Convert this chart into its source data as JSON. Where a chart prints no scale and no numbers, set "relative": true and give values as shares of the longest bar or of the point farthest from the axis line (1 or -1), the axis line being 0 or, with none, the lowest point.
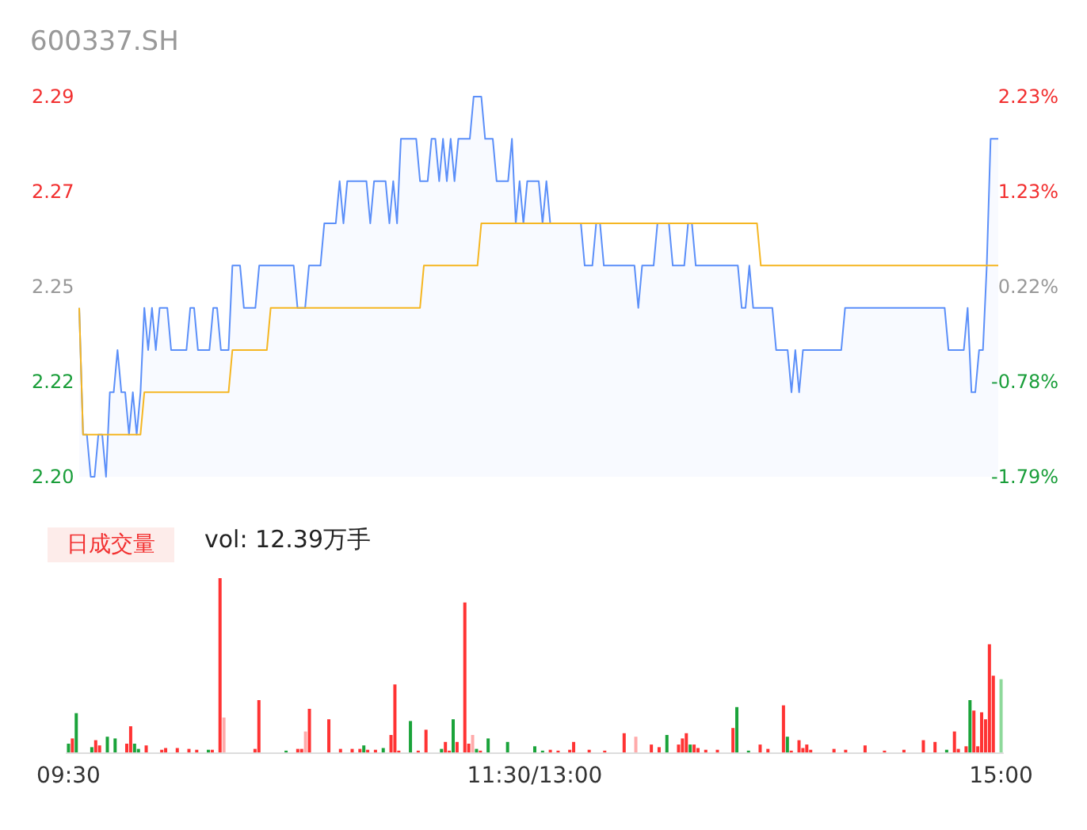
{
  "chart_data": [
    {
      "type": "line",
      "title": "600337.SH",
      "tick_labels": "y",
      "categories": [
        null,
        null,
        null,
        null,
        null,
        null,
        null,
        null,
        null,
        null,
        null,
        null,
        null,
        null,
        null,
        null,
        null,
        null,
        null,
        null,
        null,
        null,
        null,
        null,
        null,
        null,
        null,
        null,
        null,
        null,
        null,
        null,
        null,
        null,
        null,
        null,
        null,
        null,
        null,
        null,
        null,
        null,
        null,
        null,
        null,
        null,
        null,
        null,
        null,
        null,
        null,
        null,
        null,
        null,
        null,
        null,
        null,
        null,
        null,
        null,
        null,
        null,
        null,
        null,
        null,
        null,
        null,
        null,
        null,
        null,
        null,
        null,
        null,
        null,
        null,
        null,
        null,
        null,
        null,
        null,
        null,
        null,
        null,
        null,
        null,
        null,
        null,
        null,
        null,
        null,
        null,
        null,
        null,
        null,
        null,
        null,
        null,
        null,
        null,
        null,
        null,
        null,
        null,
        null,
        null,
        null,
        null,
        null,
        null,
        null,
        null,
        null,
        null,
        null,
        null,
        null,
        null,
        null,
        null,
        null,
        null,
        null,
        null,
        null,
        null,
        null,
        null,
        null,
        null,
        null,
        null,
        null,
        null,
        null,
        null,
        null,
        null,
        null,
        null,
        null,
        null,
        null,
        null,
        null,
        null,
        null,
        null,
        null,
        null,
        null,
        null,
        null,
        null,
        null,
        null,
        null,
        null,
        null,
        null,
        null,
        null,
        null,
        null,
        null,
        null,
        null,
        null,
        null,
        null,
        null,
        null,
        null,
        null,
        null,
        null,
        null,
        null,
        null,
        null,
        null,
        null,
        null,
        null,
        null,
        null,
        null,
        null,
        null,
        null,
        null,
        null,
        null,
        null,
        null,
        null,
        null,
        null,
        null,
        null,
        null,
        null,
        null,
        null,
        null,
        null,
        null,
        null,
        null,
        null,
        null,
        null,
        null,
        null,
        null,
        null,
        null,
        null,
        null,
        null,
        null,
        null,
        null,
        null,
        null,
        null,
        null,
        null,
        null,
        null,
        null,
        null,
        null,
        null,
        null,
        null,
        null,
        null,
        null,
        null,
        null,
        null
      ],
      "ylim": [
        2.2,
        2.29
      ],
      "yticks": [
        {
          "value": 2.2,
          "label": "2.20"
        },
        {
          "value": 2.2225,
          "label": "2.22"
        },
        {
          "value": 2.245,
          "label": "2.25"
        },
        {
          "value": 2.2675,
          "label": "2.27"
        },
        {
          "value": 2.29,
          "label": "2.29"
        }
      ],
      "y2lim": [
        -1.79,
        2.23
      ],
      "y2ticks": [
        {
          "value": -1.79,
          "label": "-1.79%"
        },
        {
          "value": -0.785,
          "label": "-0.78%"
        },
        {
          "value": 0.22,
          "label": "0.22%"
        },
        {
          "value": 1.225,
          "label": "1.23%"
        },
        {
          "value": 2.23,
          "label": "2.23%"
        }
      ],
      "series": [
        {
          "type": "area",
          "color": "#5b8ff9",
          "values": [
            2.24,
            2.21,
            2.21,
            2.2,
            2.2,
            2.21,
            2.21,
            2.2,
            2.22,
            2.22,
            2.23,
            2.22,
            2.22,
            2.21,
            2.22,
            2.21,
            2.22,
            2.24,
            2.23,
            2.24,
            2.23,
            2.24,
            2.24,
            2.24,
            2.23,
            2.23,
            2.23,
            2.23,
            2.23,
            2.24,
            2.24,
            2.23,
            2.23,
            2.23,
            2.23,
            2.24,
            2.24,
            2.23,
            2.23,
            2.23,
            2.25,
            2.25,
            2.25,
            2.24,
            2.24,
            2.24,
            2.24,
            2.25,
            2.25,
            2.25,
            2.25,
            2.25,
            2.25,
            2.25,
            2.25,
            2.25,
            2.25,
            2.24,
            2.24,
            2.24,
            2.25,
            2.25,
            2.25,
            2.25,
            2.26,
            2.26,
            2.26,
            2.26,
            2.27,
            2.26,
            2.27,
            2.27,
            2.27,
            2.27,
            2.27,
            2.27,
            2.26,
            2.27,
            2.27,
            2.27,
            2.27,
            2.26,
            2.27,
            2.26,
            2.28,
            2.28,
            2.28,
            2.28,
            2.28,
            2.27,
            2.27,
            2.27,
            2.28,
            2.28,
            2.27,
            2.28,
            2.27,
            2.28,
            2.27,
            2.28,
            2.28,
            2.28,
            2.28,
            2.29,
            2.29,
            2.29,
            2.28,
            2.28,
            2.28,
            2.27,
            2.27,
            2.27,
            2.27,
            2.28,
            2.26,
            2.27,
            2.26,
            2.27,
            2.27,
            2.27,
            2.27,
            2.26,
            2.27,
            2.26,
            2.26,
            2.26,
            2.26,
            2.26,
            2.26,
            2.26,
            2.26,
            2.26,
            2.25,
            2.25,
            2.25,
            2.26,
            2.26,
            2.25,
            2.25,
            2.25,
            2.25,
            2.25,
            2.25,
            2.25,
            2.25,
            2.25,
            2.24,
            2.25,
            2.25,
            2.25,
            2.25,
            2.26,
            2.26,
            2.26,
            2.26,
            2.25,
            2.25,
            2.25,
            2.25,
            2.26,
            2.26,
            2.25,
            2.25,
            2.25,
            2.25,
            2.25,
            2.25,
            2.25,
            2.25,
            2.25,
            2.25,
            2.25,
            2.25,
            2.24,
            2.24,
            2.25,
            2.24,
            2.24,
            2.24,
            2.24,
            2.24,
            2.24,
            2.23,
            2.23,
            2.23,
            2.23,
            2.22,
            2.23,
            2.22,
            2.23,
            2.23,
            2.23,
            2.23,
            2.23,
            2.23,
            2.23,
            2.23,
            2.23,
            2.23,
            2.23,
            2.24,
            2.24,
            2.24,
            2.24,
            2.24,
            2.24,
            2.24,
            2.24,
            2.24,
            2.24,
            2.24,
            2.24,
            2.24,
            2.24,
            2.24,
            2.24,
            2.24,
            2.24,
            2.24,
            2.24,
            2.24,
            2.24,
            2.24,
            2.24,
            2.24,
            2.24,
            2.24,
            2.23,
            2.23,
            2.23,
            2.23,
            2.23,
            2.24,
            2.22,
            2.22,
            2.23,
            2.23,
            2.25,
            2.28,
            2.28,
            2.28
          ]
        },
        {
          "type": "line",
          "color": "#f5b622",
          "values": [
            2.24,
            2.21,
            2.21,
            2.21,
            2.21,
            2.21,
            2.21,
            2.21,
            2.21,
            2.21,
            2.21,
            2.21,
            2.21,
            2.21,
            2.21,
            2.21,
            2.21,
            2.22,
            2.22,
            2.22,
            2.22,
            2.22,
            2.22,
            2.22,
            2.22,
            2.22,
            2.22,
            2.22,
            2.22,
            2.22,
            2.22,
            2.22,
            2.22,
            2.22,
            2.22,
            2.22,
            2.22,
            2.22,
            2.22,
            2.22,
            2.23,
            2.23,
            2.23,
            2.23,
            2.23,
            2.23,
            2.23,
            2.23,
            2.23,
            2.23,
            2.24,
            2.24,
            2.24,
            2.24,
            2.24,
            2.24,
            2.24,
            2.24,
            2.24,
            2.24,
            2.24,
            2.24,
            2.24,
            2.24,
            2.24,
            2.24,
            2.24,
            2.24,
            2.24,
            2.24,
            2.24,
            2.24,
            2.24,
            2.24,
            2.24,
            2.24,
            2.24,
            2.24,
            2.24,
            2.24,
            2.24,
            2.24,
            2.24,
            2.24,
            2.24,
            2.24,
            2.24,
            2.24,
            2.24,
            2.24,
            2.25,
            2.25,
            2.25,
            2.25,
            2.25,
            2.25,
            2.25,
            2.25,
            2.25,
            2.25,
            2.25,
            2.25,
            2.25,
            2.25,
            2.25,
            2.26,
            2.26,
            2.26,
            2.26,
            2.26,
            2.26,
            2.26,
            2.26,
            2.26,
            2.26,
            2.26,
            2.26,
            2.26,
            2.26,
            2.26,
            2.26,
            2.26,
            2.26,
            2.26,
            2.26,
            2.26,
            2.26,
            2.26,
            2.26,
            2.26,
            2.26,
            2.26,
            2.26,
            2.26,
            2.26,
            2.26,
            2.26,
            2.26,
            2.26,
            2.26,
            2.26,
            2.26,
            2.26,
            2.26,
            2.26,
            2.26,
            2.26,
            2.26,
            2.26,
            2.26,
            2.26,
            2.26,
            2.26,
            2.26,
            2.26,
            2.26,
            2.26,
            2.26,
            2.26,
            2.26,
            2.26,
            2.26,
            2.26,
            2.26,
            2.26,
            2.26,
            2.26,
            2.26,
            2.26,
            2.26,
            2.26,
            2.26,
            2.26,
            2.26,
            2.26,
            2.26,
            2.26,
            2.26,
            2.25,
            2.25,
            2.25,
            2.25,
            2.25,
            2.25,
            2.25,
            2.25,
            2.25,
            2.25,
            2.25,
            2.25,
            2.25,
            2.25,
            2.25,
            2.25,
            2.25,
            2.25,
            2.25,
            2.25,
            2.25,
            2.25,
            2.25,
            2.25,
            2.25,
            2.25,
            2.25,
            2.25,
            2.25,
            2.25,
            2.25,
            2.25,
            2.25,
            2.25,
            2.25,
            2.25,
            2.25,
            2.25,
            2.25,
            2.25,
            2.25,
            2.25,
            2.25,
            2.25,
            2.25,
            2.25,
            2.25,
            2.25,
            2.25,
            2.25,
            2.25,
            2.25,
            2.25,
            2.25,
            2.25,
            2.25,
            2.25,
            2.25,
            2.25,
            2.25,
            2.25,
            2.25,
            2.25
          ]
        }
      ]
    },
    {
      "type": "bar",
      "relative": true,
      "tick_labels": "x",
      "categories": [
        "09:30",
        null,
        null,
        null,
        null,
        null,
        null,
        null,
        null,
        null,
        null,
        null,
        null,
        null,
        null,
        null,
        null,
        null,
        null,
        null,
        null,
        null,
        null,
        null,
        null,
        null,
        null,
        null,
        null,
        null,
        null,
        null,
        null,
        null,
        null,
        null,
        null,
        null,
        null,
        null,
        null,
        null,
        null,
        null,
        null,
        null,
        null,
        null,
        null,
        null,
        null,
        null,
        null,
        null,
        null,
        null,
        null,
        null,
        null,
        null,
        null,
        null,
        null,
        null,
        null,
        null,
        null,
        null,
        null,
        null,
        null,
        null,
        null,
        null,
        null,
        null,
        null,
        null,
        null,
        null,
        null,
        null,
        null,
        null,
        null,
        null,
        null,
        null,
        null,
        null,
        null,
        null,
        null,
        null,
        null,
        null,
        null,
        null,
        null,
        null,
        null,
        null,
        null,
        null,
        null,
        null,
        null,
        null,
        null,
        null,
        null,
        null,
        null,
        null,
        null,
        null,
        null,
        null,
        null,
        null,
        "11:30/13:00",
        null,
        null,
        null,
        null,
        null,
        null,
        null,
        null,
        null,
        null,
        null,
        null,
        null,
        null,
        null,
        null,
        null,
        null,
        null,
        null,
        null,
        null,
        null,
        null,
        null,
        null,
        null,
        null,
        null,
        null,
        null,
        null,
        null,
        null,
        null,
        null,
        null,
        null,
        null,
        null,
        null,
        null,
        null,
        null,
        null,
        null,
        null,
        null,
        null,
        null,
        null,
        null,
        null,
        null,
        null,
        null,
        null,
        null,
        null,
        null,
        null,
        null,
        null,
        null,
        null,
        null,
        null,
        null,
        null,
        null,
        null,
        null,
        null,
        null,
        null,
        null,
        null,
        null,
        null,
        null,
        null,
        null,
        null,
        null,
        null,
        null,
        null,
        null,
        null,
        null,
        null,
        null,
        null,
        null,
        null,
        null,
        null,
        null,
        null,
        null,
        null,
        null,
        null,
        null,
        null,
        null,
        null,
        null,
        null,
        null,
        null,
        null,
        null,
        null,
        null,
        null,
        null,
        null,
        null,
        "15:00"
      ],
      "annotations": [
        "日成交量",
        "vol: 12.39万手"
      ],
      "values": [
        0.05,
        0.08,
        0.225,
        null,
        null,
        null,
        0.03,
        0.07,
        0.04,
        null,
        0.09,
        null,
        0.08,
        null,
        null,
        0.05,
        0.15,
        0.05,
        0.02,
        null,
        0.04,
        null,
        null,
        null,
        0.015,
        0.025,
        null,
        null,
        0.025,
        null,
        null,
        0.02,
        null,
        0.015,
        null,
        null,
        0.015,
        0.015,
        null,
        1,
        0.2,
        null,
        null,
        null,
        null,
        null,
        null,
        null,
        0.02,
        0.3,
        null,
        null,
        null,
        null,
        null,
        null,
        0.01,
        null,
        null,
        0.02,
        0.02,
        0.12,
        0.25,
        null,
        null,
        null,
        null,
        0.19,
        null,
        null,
        0.02,
        null,
        null,
        0.02,
        null,
        0.02,
        0.04,
        0.015,
        null,
        0.015,
        null,
        0.025,
        null,
        0.1,
        0.39,
        0.01,
        null,
        null,
        0.18,
        null,
        0.01,
        null,
        0.13,
        null,
        null,
        null,
        0.02,
        0.06,
        0.01,
        0.19,
        0.06,
        null,
        0.86,
        0.05,
        0.1,
        0.02,
        0.01,
        null,
        0.08,
        null,
        null,
        null,
        null,
        0.06,
        null,
        null,
        null,
        null,
        null,
        null,
        0.035,
        null,
        0.01,
        null,
        0.015,
        null,
        0.01,
        null,
        null,
        0.015,
        0.06,
        null,
        null,
        null,
        0.015,
        null,
        null,
        null,
        0.01,
        null,
        null,
        null,
        null,
        0.11,
        null,
        null,
        0.09,
        null,
        null,
        null,
        0.045,
        null,
        0.03,
        null,
        0.1,
        null,
        null,
        0.045,
        0.08,
        0.11,
        0.045,
        0.045,
        0.025,
        null,
        0.015,
        null,
        null,
        0.015,
        null,
        null,
        null,
        0.14,
        0.26,
        null,
        null,
        0.01,
        null,
        null,
        0.045,
        null,
        0.02,
        null,
        null,
        null,
        0.27,
        0.09,
        0.01,
        null,
        0.07,
        0.025,
        0.045,
        0.015,
        null,
        null,
        null,
        null,
        null,
        0.02,
        null,
        null,
        0.015,
        null,
        null,
        null,
        null,
        0.04,
        null,
        null,
        null,
        null,
        0.01,
        null,
        null,
        null,
        null,
        0.015,
        null,
        null,
        null,
        null,
        0.07,
        null,
        null,
        0.06,
        null,
        null,
        0.015,
        null,
        0.12,
        0.02,
        null,
        0.035,
        0.3,
        0.24,
        0.035,
        0.23,
        0.19,
        0.62,
        0.44,
        null,
        0.42
      ],
      "colors": [
        "#1aa33a",
        "#ff3333",
        "#1aa33a",
        null,
        null,
        null,
        "#1aa33a",
        "#ff3333",
        "#ff3333",
        null,
        "#1aa33a",
        null,
        "#1aa33a",
        null,
        null,
        "#ff3333",
        "#ff3333",
        "#1aa33a",
        "#1aa33a",
        null,
        "#ff3333",
        null,
        null,
        null,
        "#ff3333",
        "#ff3333",
        null,
        null,
        "#ff3333",
        null,
        null,
        "#ff3333",
        null,
        "#ff3333",
        null,
        null,
        "#1aa33a",
        "#ff3333",
        null,
        "#ff3333",
        "#ffaaaa",
        null,
        null,
        null,
        null,
        null,
        null,
        null,
        "#ff3333",
        "#ff3333",
        null,
        null,
        null,
        null,
        null,
        null,
        "#1aa33a",
        null,
        null,
        "#ff3333",
        "#ff3333",
        "#ffaaaa",
        "#ff3333",
        null,
        null,
        null,
        null,
        "#ff3333",
        null,
        null,
        "#ff3333",
        null,
        null,
        "#ff3333",
        null,
        "#ff3333",
        "#1aa33a",
        "#ff3333",
        null,
        "#ff3333",
        null,
        "#1aa33a",
        null,
        "#ff3333",
        "#ff3333",
        "#ff3333",
        null,
        null,
        "#1aa33a",
        null,
        "#ff3333",
        null,
        "#ff3333",
        null,
        null,
        null,
        "#1aa33a",
        "#ff3333",
        "#ff3333",
        "#1aa33a",
        "#ff3333",
        null,
        "#ff3333",
        "#ff3333",
        "#ffaaaa",
        "#1aa33a",
        "#ff3333",
        null,
        "#1aa33a",
        null,
        null,
        null,
        null,
        "#1aa33a",
        null,
        null,
        null,
        null,
        null,
        null,
        "#1aa33a",
        null,
        "#1aa33a",
        null,
        "#ff3333",
        null,
        "#ff3333",
        null,
        null,
        "#ff3333",
        "#ff3333",
        null,
        null,
        null,
        "#ff3333",
        null,
        null,
        null,
        "#ff3333",
        null,
        null,
        null,
        null,
        "#ff3333",
        null,
        null,
        "#ffaaaa",
        null,
        null,
        null,
        "#ff3333",
        null,
        "#ff3333",
        null,
        "#1aa33a",
        null,
        null,
        "#ff3333",
        "#ff3333",
        "#ff3333",
        "#1aa33a",
        "#ff3333",
        "#ff3333",
        null,
        "#ff3333",
        null,
        null,
        "#ff3333",
        null,
        null,
        null,
        "#ff3333",
        "#1aa33a",
        null,
        null,
        "#1aa33a",
        null,
        null,
        "#ff3333",
        null,
        "#ff3333",
        null,
        null,
        null,
        "#ff3333",
        "#1aa33a",
        "#ff3333",
        null,
        "#ff3333",
        "#ff3333",
        "#ff3333",
        "#ff3333",
        null,
        null,
        null,
        null,
        null,
        "#ff3333",
        null,
        null,
        "#ff3333",
        null,
        null,
        null,
        null,
        "#ff3333",
        null,
        null,
        null,
        null,
        "#ff3333",
        null,
        null,
        null,
        null,
        "#ff3333",
        null,
        null,
        null,
        null,
        "#ff3333",
        null,
        null,
        "#ff3333",
        null,
        null,
        "#1aa33a",
        null,
        "#ff3333",
        "#ff3333",
        null,
        "#ff3333",
        "#1aa33a",
        "#ff3333",
        "#ff3333",
        "#ff3333",
        "#ff3333",
        "#ff3333",
        "#ff3333",
        null,
        "#8ed99b"
      ]
    }
  ]
}
